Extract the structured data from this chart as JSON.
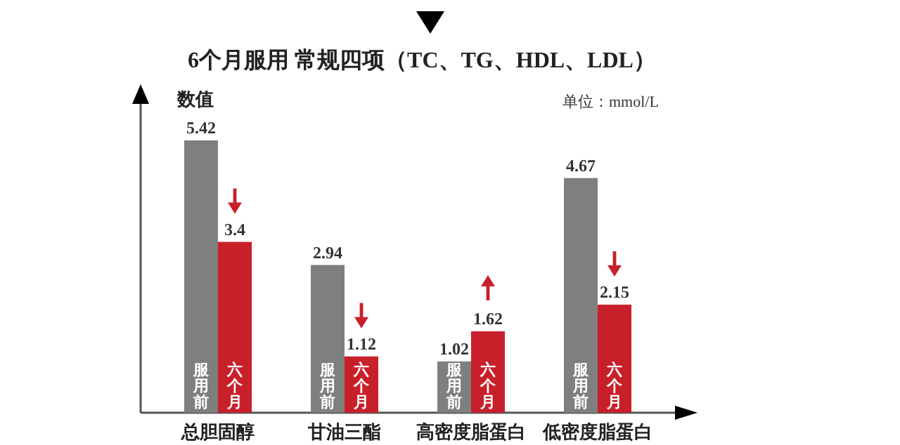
{
  "chart_data": {
    "type": "bar",
    "title": "6个月服用 常规四项（TC、TG、HDL、LDL）",
    "ylabel": "数值",
    "annotations": [
      "单位：mmol/L"
    ],
    "categories": [
      "总胆固醇",
      "甘油三酯",
      "高密度脂蛋白",
      "低密度脂蛋白"
    ],
    "series": [
      {
        "name": "服用前",
        "color": "#7f7f7f",
        "values": [
          5.42,
          2.94,
          1.02,
          4.67
        ]
      },
      {
        "name": "六个月",
        "color": "#c8202a",
        "values": [
          3.4,
          1.12,
          1.62,
          2.15
        ]
      }
    ],
    "data_labels": true,
    "legend": false
  }
}
